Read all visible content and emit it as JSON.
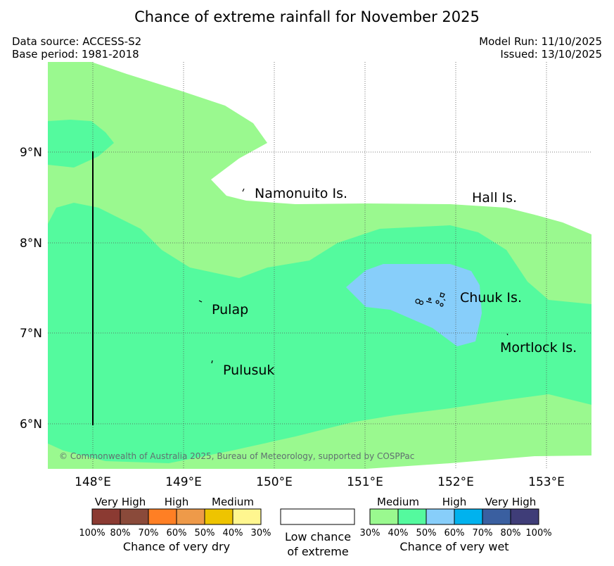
{
  "title": "Chance of extreme rainfall for November 2025",
  "meta": {
    "data_source": "Data source: ACCESS-S2",
    "base_period": "Base period: 1981-2018",
    "model_run": "Model Run: 11/10/2025",
    "issued": "Issued: 13/10/2025"
  },
  "axes": {
    "lon_labels": [
      "148°E",
      "149°E",
      "150°E",
      "151°E",
      "152°E",
      "153°E"
    ],
    "lat_labels": [
      "9°N",
      "8°N",
      "7°N",
      "6°N"
    ]
  },
  "places": {
    "namonuito": "Namonuito Is.",
    "hall": "Hall Is.",
    "pulap": "Pulap",
    "chuuk": "Chuuk Is.",
    "mortlock": "Mortlock Is.",
    "pulusuk": "Pulusuk"
  },
  "copyright": "© Commonwealth of Australia 2025, Bureau of Meteorology, supported by COSPPac",
  "legend": {
    "dry": {
      "headers": [
        "Very High",
        "High",
        "Medium"
      ],
      "ticks": [
        "100%",
        "80%",
        "70%",
        "60%",
        "50%",
        "40%",
        "30%"
      ],
      "title": "Chance of very dry",
      "colors": [
        "#8B3A32",
        "#8A4A3A",
        "#FF7F24",
        "#EE9A49",
        "#EEC400",
        "#FFF68F"
      ]
    },
    "low": {
      "line1": "Low chance",
      "line2": "of extreme",
      "color": "#ffffff"
    },
    "wet": {
      "headers": [
        "Medium",
        "High",
        "Very High"
      ],
      "ticks": [
        "30%",
        "40%",
        "50%",
        "60%",
        "70%",
        "80%",
        "100%"
      ],
      "title": "Chance of very wet",
      "colors": [
        "#9AF98F",
        "#54FA9E",
        "#87CEFA",
        "#00B2EE",
        "#3A5FA0",
        "#3F3D78"
      ]
    }
  },
  "map_colors": {
    "medium_30_40": "#9AF98F",
    "medium_40_50": "#54FA9E",
    "high_50_60": "#87CEFA"
  }
}
